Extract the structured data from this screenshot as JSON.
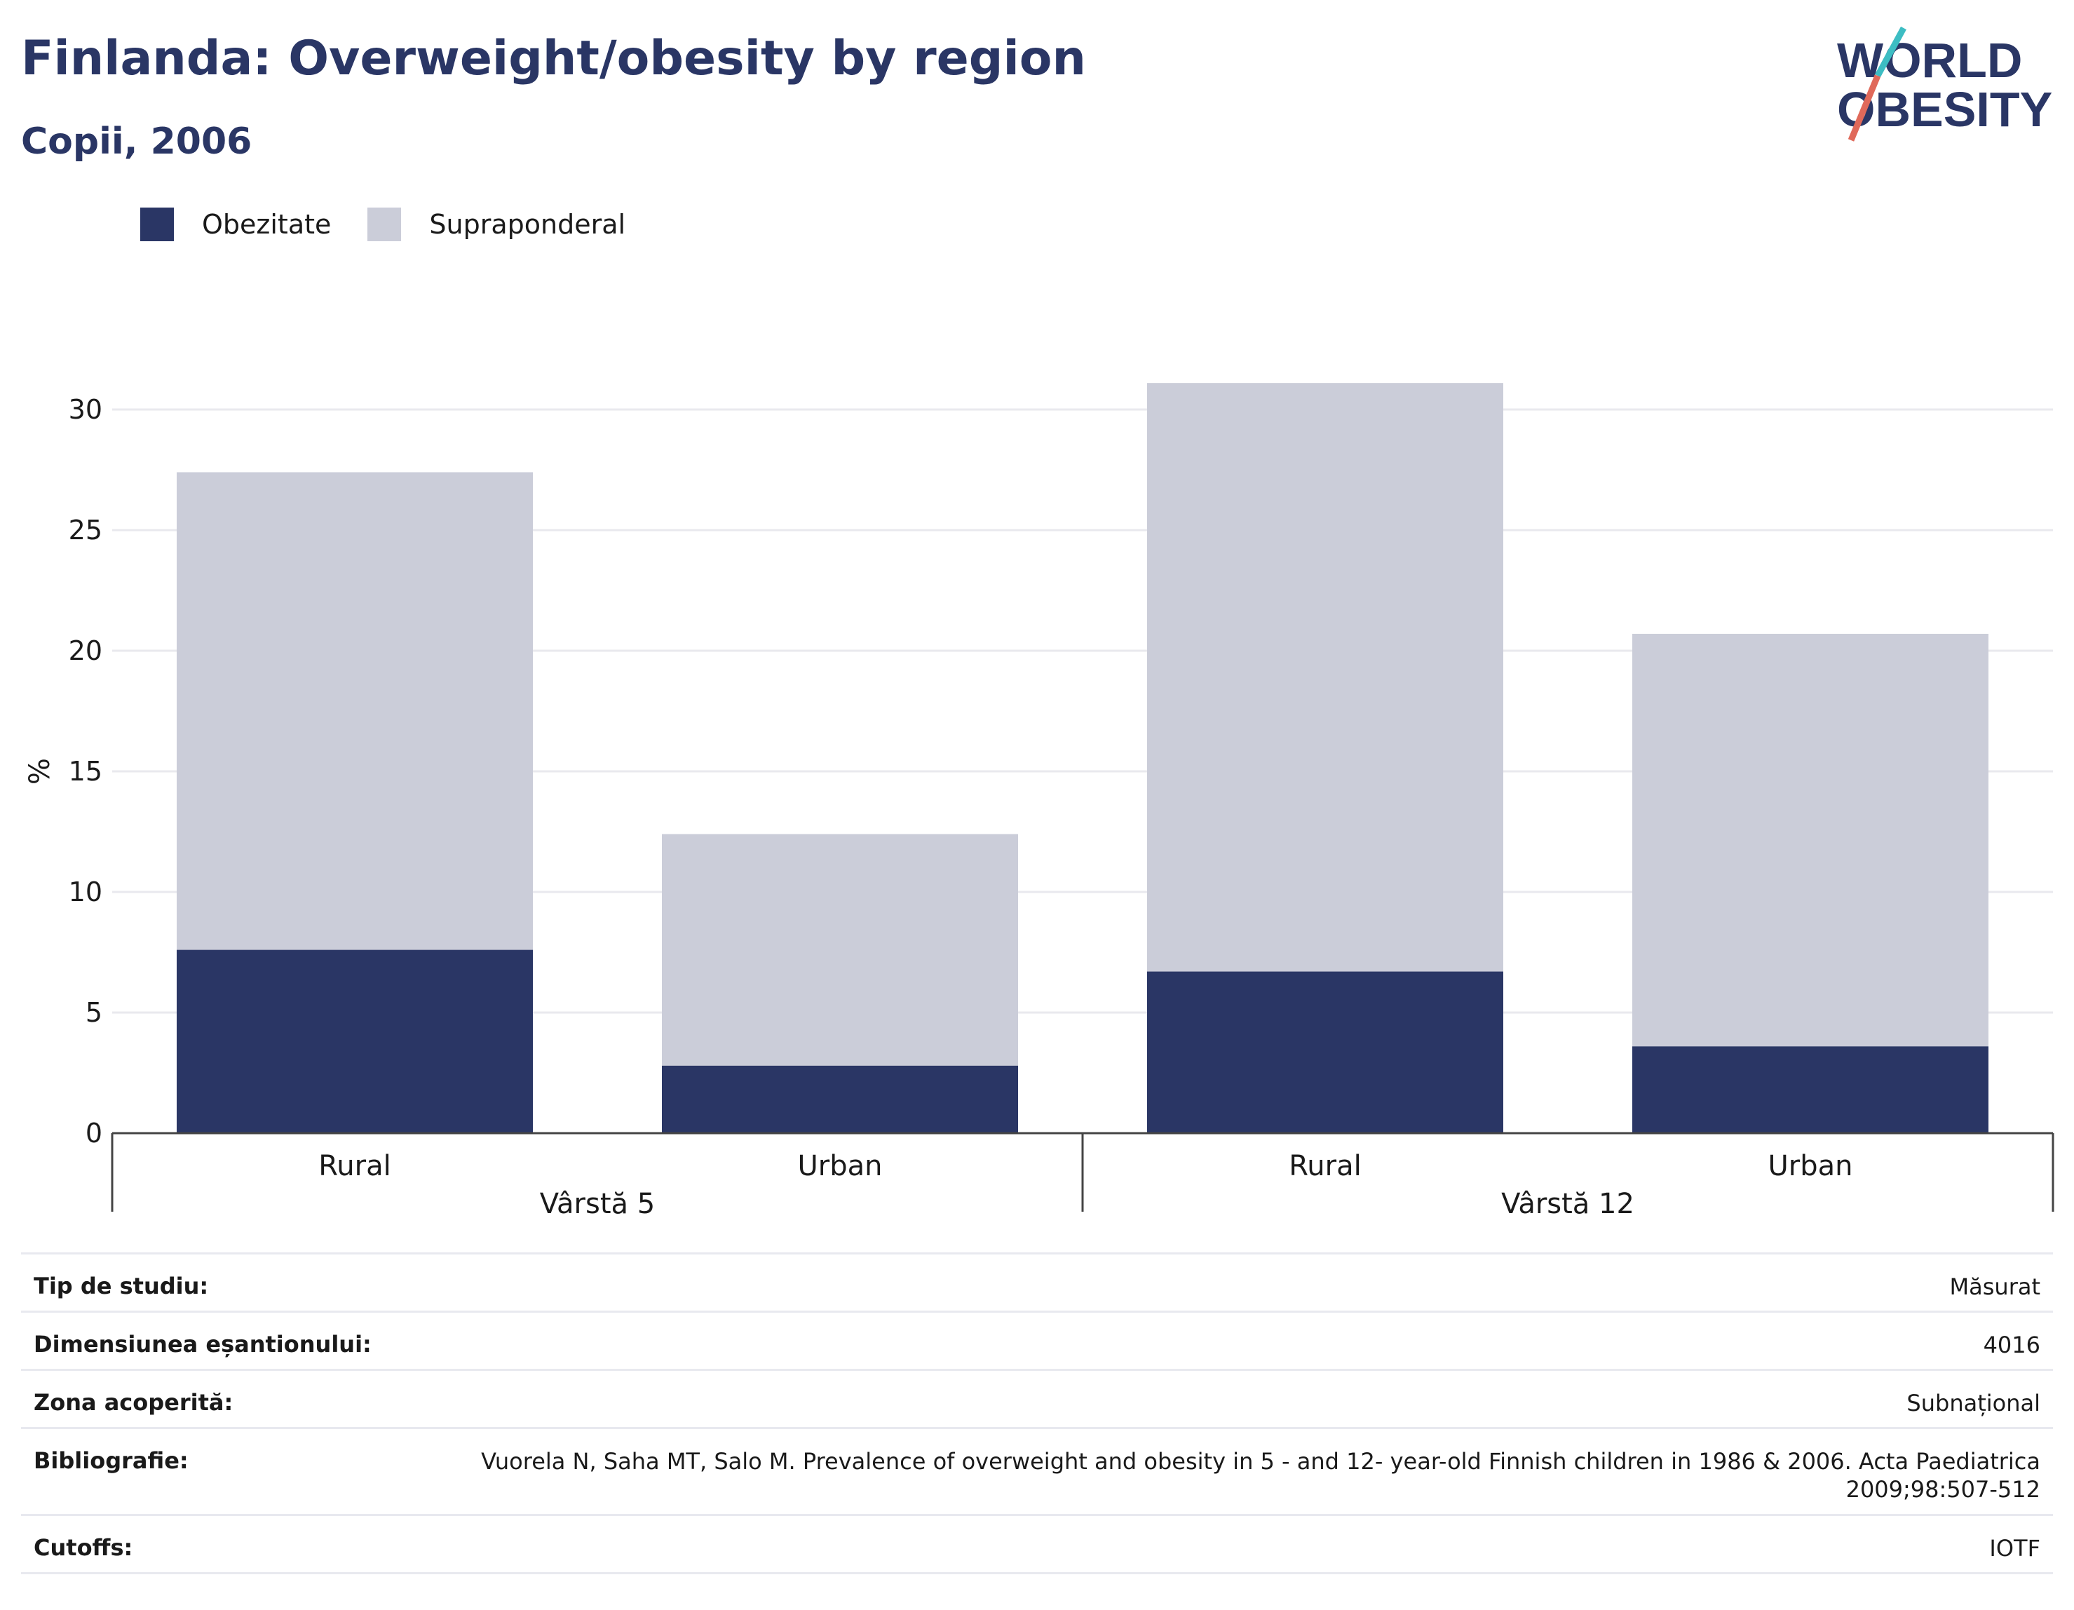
{
  "header": {
    "title": "Finlanda: Overweight/obesity by region",
    "subtitle": "Copii, 2006",
    "logo_line1": "WORLD",
    "logo_line2": "OBESITY"
  },
  "colors": {
    "obesity": "#2a3665",
    "overweight": "#cbcdd9",
    "grid": "#e9e9ee",
    "text": "#1a1a1a",
    "logo_teal": "#3dbdc3",
    "logo_coral": "#e0695a"
  },
  "legend": [
    {
      "label": "Obezitate",
      "color": "#2a3665"
    },
    {
      "label": "Supraponderal",
      "color": "#cbcdd9"
    }
  ],
  "chart_data": {
    "type": "bar",
    "stacked": true,
    "ylabel": "%",
    "ylim": [
      0,
      31
    ],
    "yticks": [
      0,
      5,
      10,
      15,
      20,
      25,
      30
    ],
    "grid": true,
    "legend_position": "top-left",
    "groups": [
      {
        "label": "Vârstă 5",
        "categories": [
          "Rural",
          "Urban"
        ]
      },
      {
        "label": "Vârstă 12",
        "categories": [
          "Rural",
          "Urban"
        ]
      }
    ],
    "categories": [
      "Rural",
      "Urban",
      "Rural",
      "Urban"
    ],
    "series": [
      {
        "name": "Obezitate",
        "values": [
          7.6,
          2.8,
          6.7,
          3.6
        ]
      },
      {
        "name": "Supraponderal",
        "values": [
          19.8,
          9.6,
          24.4,
          17.1
        ]
      }
    ]
  },
  "metadata": [
    {
      "label": "Tip de studiu:",
      "value": "Măsurat"
    },
    {
      "label": "Dimensiunea eșantionului:",
      "value": "4016"
    },
    {
      "label": "Zona acoperită:",
      "value": "Subnațional"
    },
    {
      "label": "Bibliografie:",
      "value": "Vuorela N, Saha MT, Salo M. Prevalence of overweight and obesity in 5 - and 12- year-old Finnish children in 1986 & 2006. Acta Paediatrica 2009;98:507-512"
    },
    {
      "label": "Cutoffs:",
      "value": "IOTF"
    }
  ]
}
